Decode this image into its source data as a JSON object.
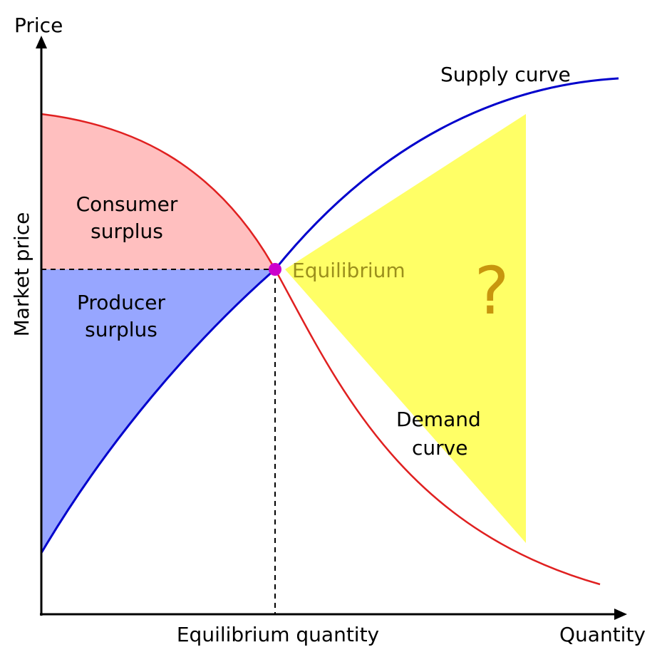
{
  "axes": {
    "y_title": "Price",
    "y_label": "Market price",
    "x_title": "Quantity",
    "x_label": "Equilibrium quantity"
  },
  "curves": {
    "supply_label": "Supply curve",
    "demand_label_line1": "Demand",
    "demand_label_line2": "curve"
  },
  "regions": {
    "consumer_line1": "Consumer",
    "consumer_line2": "surplus",
    "producer_line1": "Producer",
    "producer_line2": "surplus"
  },
  "equilibrium_label": "Equilibrium",
  "question_mark": "?",
  "colors": {
    "supply": "#0000cc",
    "demand": "#e02020",
    "consumer_surplus": "#ffbfbf",
    "producer_surplus": "#97a6ff",
    "highlight": "#ffff66",
    "equilibrium_point": "#cc00cc",
    "equilibrium_text": "#9b8f1c",
    "question_mark": "#c8960e"
  }
}
